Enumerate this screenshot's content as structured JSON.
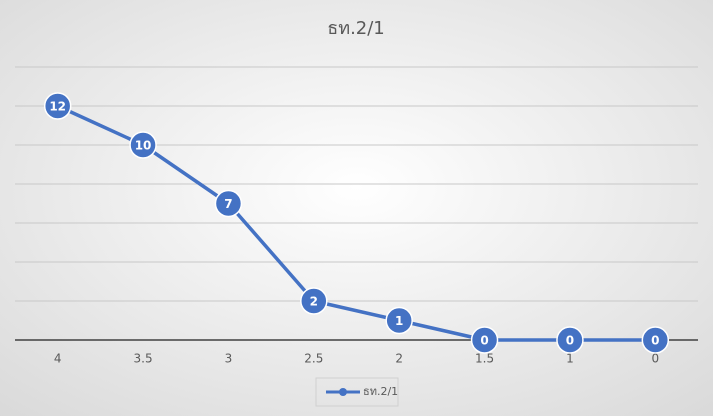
{
  "chart_data": {
    "type": "line",
    "title": "ธท.2/1",
    "categories": [
      "4",
      "3.5",
      "3",
      "2.5",
      "2",
      "1.5",
      "1",
      "0"
    ],
    "series": [
      {
        "name": "ธท.2/1",
        "color": "#4472c4",
        "values": [
          12,
          10,
          7,
          2,
          1,
          0,
          0,
          0
        ]
      }
    ],
    "ylim": [
      0,
      14
    ],
    "yticks": [
      0,
      2,
      4,
      6,
      8,
      10,
      12,
      14
    ],
    "grid": true,
    "legend": "bottom"
  }
}
